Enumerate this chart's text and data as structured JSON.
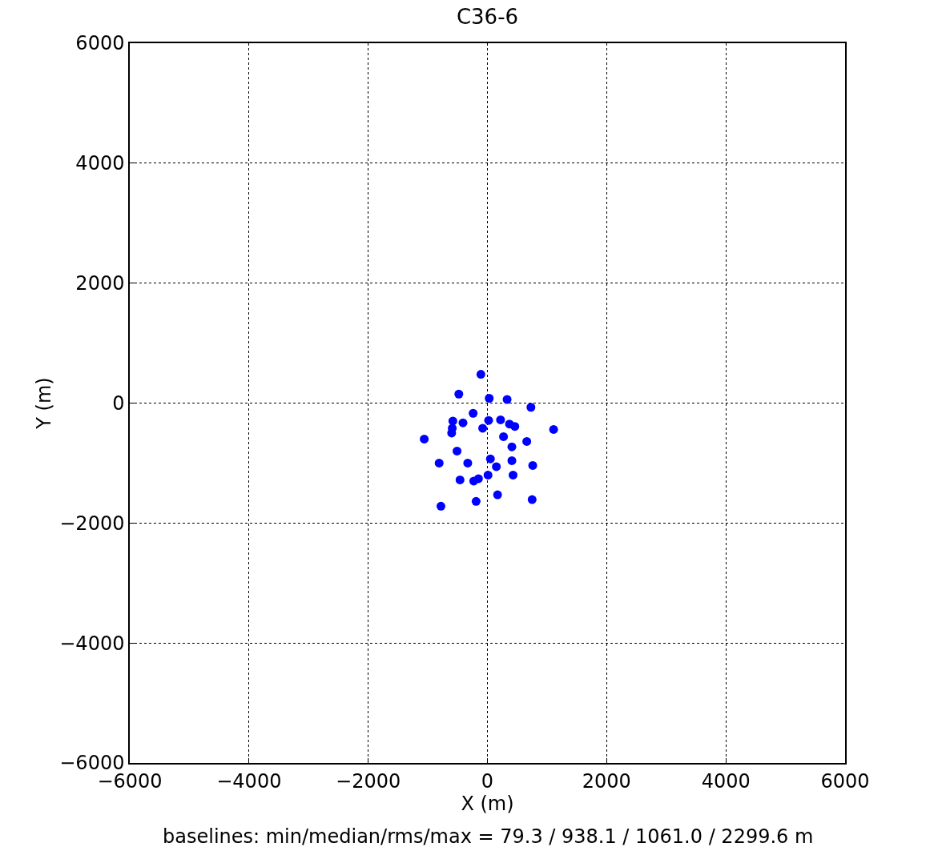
{
  "chart_data": {
    "type": "scatter",
    "title": "C36-6",
    "xlabel": "X (m)",
    "ylabel": "Y (m)",
    "x": [
      -110,
      -480,
      30,
      330,
      730,
      -240,
      -580,
      -410,
      20,
      220,
      370,
      460,
      -80,
      -590,
      -600,
      1110,
      -1060,
      270,
      660,
      410,
      -510,
      -810,
      -330,
      50,
      410,
      150,
      760,
      430,
      10,
      -150,
      -230,
      -460,
      170,
      -190,
      750,
      -780
    ],
    "series": [
      {
        "color": "#0000ff",
        "values": [
          480,
          150,
          80,
          60,
          -70,
          -170,
          -300,
          -330,
          -290,
          -280,
          -350,
          -390,
          -420,
          -420,
          -500,
          -440,
          -600,
          -560,
          -640,
          -730,
          -800,
          -1000,
          -1000,
          -930,
          -960,
          -1060,
          -1040,
          -1200,
          -1200,
          -1260,
          -1300,
          -1280,
          -1530,
          -1640,
          -1610,
          -1720
        ]
      }
    ],
    "xlim": [
      -6000,
      6000
    ],
    "ylim": [
      -6000,
      6000
    ],
    "xticks": [
      -6000,
      -4000,
      -2000,
      0,
      2000,
      4000,
      6000
    ],
    "yticks": [
      -6000,
      -4000,
      -2000,
      0,
      2000,
      4000,
      6000
    ],
    "grid": true,
    "marker": "circle",
    "annotations": [
      "baselines: min/median/rms/max = 79.3 / 938.1 / 1061.0 / 2299.6 m"
    ]
  }
}
